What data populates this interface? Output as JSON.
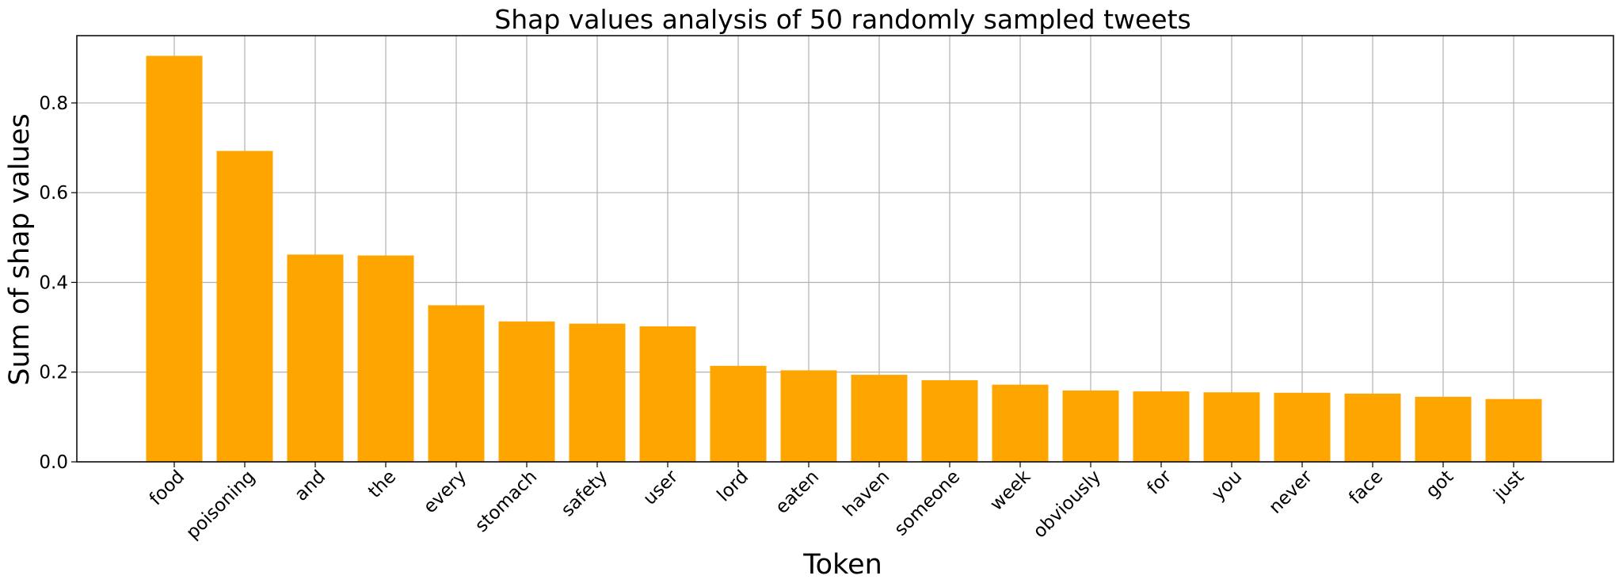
{
  "chart_data": {
    "type": "bar",
    "title": "Shap values analysis of 50 randomly sampled tweets",
    "xlabel": "Token",
    "ylabel": "Sum of shap values",
    "categories": [
      "food",
      "poisoning",
      "and",
      "the",
      "every",
      "stomach",
      "safety",
      "user",
      "lord",
      "eaten",
      "haven",
      "someone",
      "week",
      "obviously",
      "for",
      "you",
      "never",
      "face",
      "got",
      "just"
    ],
    "values": [
      0.905,
      0.693,
      0.462,
      0.46,
      0.349,
      0.313,
      0.308,
      0.302,
      0.214,
      0.204,
      0.194,
      0.182,
      0.172,
      0.159,
      0.157,
      0.155,
      0.154,
      0.152,
      0.145,
      0.14
    ],
    "ylim": [
      0,
      0.95
    ],
    "yticks": [
      "0.0",
      "0.2",
      "0.4",
      "0.6",
      "0.8"
    ],
    "grid": true,
    "bar_color": "#ffa500",
    "grid_color": "#b0b0b0"
  }
}
